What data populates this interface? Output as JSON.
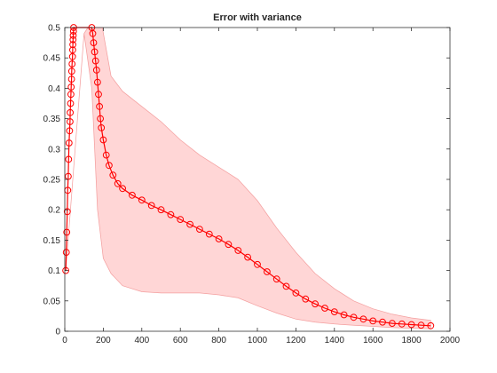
{
  "chart_data": {
    "type": "line",
    "title": "Error with variance",
    "xlabel": "",
    "ylabel": "",
    "xlim": [
      0,
      2000
    ],
    "ylim": [
      0,
      0.5
    ],
    "xticks": [
      "0",
      "200",
      "400",
      "600",
      "800",
      "1000",
      "1200",
      "1400",
      "1600",
      "1800",
      "2000"
    ],
    "yticks": [
      "0",
      "0.05",
      "0.1",
      "0.15",
      "0.2",
      "0.25",
      "0.3",
      "0.35",
      "0.4",
      "0.45",
      "0.5"
    ],
    "grid": false,
    "colors": {
      "line": "#ff0000",
      "band_fill": "#ffd6d6",
      "band_edge": "#f4a0a0",
      "axes": "#262626"
    },
    "series": [
      {
        "marker": "circle",
        "points": [
          [
            5,
            0.1
          ],
          [
            8,
            0.13
          ],
          [
            10,
            0.163
          ],
          [
            13,
            0.197
          ],
          [
            15,
            0.232
          ],
          [
            18,
            0.255
          ],
          [
            20,
            0.283
          ],
          [
            22,
            0.31
          ],
          [
            25,
            0.33
          ],
          [
            27,
            0.345
          ],
          [
            28,
            0.36
          ],
          [
            30,
            0.375
          ],
          [
            32,
            0.39
          ],
          [
            33,
            0.402
          ],
          [
            35,
            0.415
          ],
          [
            36,
            0.428
          ],
          [
            38,
            0.44
          ],
          [
            40,
            0.452
          ],
          [
            41,
            0.463
          ],
          [
            42,
            0.472
          ],
          [
            43,
            0.48
          ],
          [
            44,
            0.487
          ],
          [
            45,
            0.494
          ],
          [
            46,
            0.5
          ],
          [
            140,
            0.5
          ],
          [
            145,
            0.49
          ],
          [
            150,
            0.475
          ],
          [
            155,
            0.46
          ],
          [
            160,
            0.445
          ],
          [
            165,
            0.43
          ],
          [
            170,
            0.41
          ],
          [
            175,
            0.39
          ],
          [
            180,
            0.37
          ],
          [
            185,
            0.35
          ],
          [
            190,
            0.335
          ],
          [
            200,
            0.315
          ],
          [
            215,
            0.29
          ],
          [
            230,
            0.273
          ],
          [
            250,
            0.257
          ],
          [
            275,
            0.243
          ],
          [
            300,
            0.235
          ],
          [
            350,
            0.224
          ],
          [
            400,
            0.216
          ],
          [
            450,
            0.207
          ],
          [
            500,
            0.2
          ],
          [
            550,
            0.192
          ],
          [
            600,
            0.184
          ],
          [
            650,
            0.176
          ],
          [
            700,
            0.168
          ],
          [
            750,
            0.16
          ],
          [
            800,
            0.152
          ],
          [
            850,
            0.143
          ],
          [
            900,
            0.133
          ],
          [
            950,
            0.122
          ],
          [
            1000,
            0.11
          ],
          [
            1050,
            0.098
          ],
          [
            1100,
            0.086
          ],
          [
            1150,
            0.074
          ],
          [
            1200,
            0.063
          ],
          [
            1250,
            0.053
          ],
          [
            1300,
            0.045
          ],
          [
            1350,
            0.038
          ],
          [
            1400,
            0.032
          ],
          [
            1450,
            0.027
          ],
          [
            1500,
            0.023
          ],
          [
            1550,
            0.02
          ],
          [
            1600,
            0.017
          ],
          [
            1650,
            0.015
          ],
          [
            1700,
            0.013
          ],
          [
            1750,
            0.012
          ],
          [
            1800,
            0.011
          ],
          [
            1850,
            0.01
          ],
          [
            1900,
            0.009
          ]
        ],
        "upper": [
          [
            5,
            0.1
          ],
          [
            100,
            0.49
          ],
          [
            120,
            0.5
          ],
          [
            195,
            0.5
          ],
          [
            240,
            0.42
          ],
          [
            300,
            0.395
          ],
          [
            400,
            0.37
          ],
          [
            500,
            0.345
          ],
          [
            600,
            0.315
          ],
          [
            700,
            0.29
          ],
          [
            800,
            0.27
          ],
          [
            900,
            0.25
          ],
          [
            1000,
            0.215
          ],
          [
            1100,
            0.17
          ],
          [
            1200,
            0.13
          ],
          [
            1300,
            0.095
          ],
          [
            1400,
            0.07
          ],
          [
            1500,
            0.05
          ],
          [
            1600,
            0.037
          ],
          [
            1700,
            0.028
          ],
          [
            1800,
            0.022
          ],
          [
            1900,
            0.018
          ]
        ],
        "lower": [
          [
            5,
            0.1
          ],
          [
            100,
            0.49
          ],
          [
            140,
            0.4
          ],
          [
            170,
            0.2
          ],
          [
            200,
            0.12
          ],
          [
            240,
            0.095
          ],
          [
            300,
            0.075
          ],
          [
            400,
            0.065
          ],
          [
            500,
            0.063
          ],
          [
            600,
            0.063
          ],
          [
            700,
            0.063
          ],
          [
            800,
            0.06
          ],
          [
            900,
            0.055
          ],
          [
            1000,
            0.042
          ],
          [
            1100,
            0.03
          ],
          [
            1200,
            0.02
          ],
          [
            1300,
            0.015
          ],
          [
            1400,
            0.012
          ],
          [
            1500,
            0.01
          ],
          [
            1600,
            0.008
          ],
          [
            1700,
            0.006
          ],
          [
            1800,
            0.005
          ],
          [
            1900,
            0.004
          ]
        ]
      }
    ]
  }
}
